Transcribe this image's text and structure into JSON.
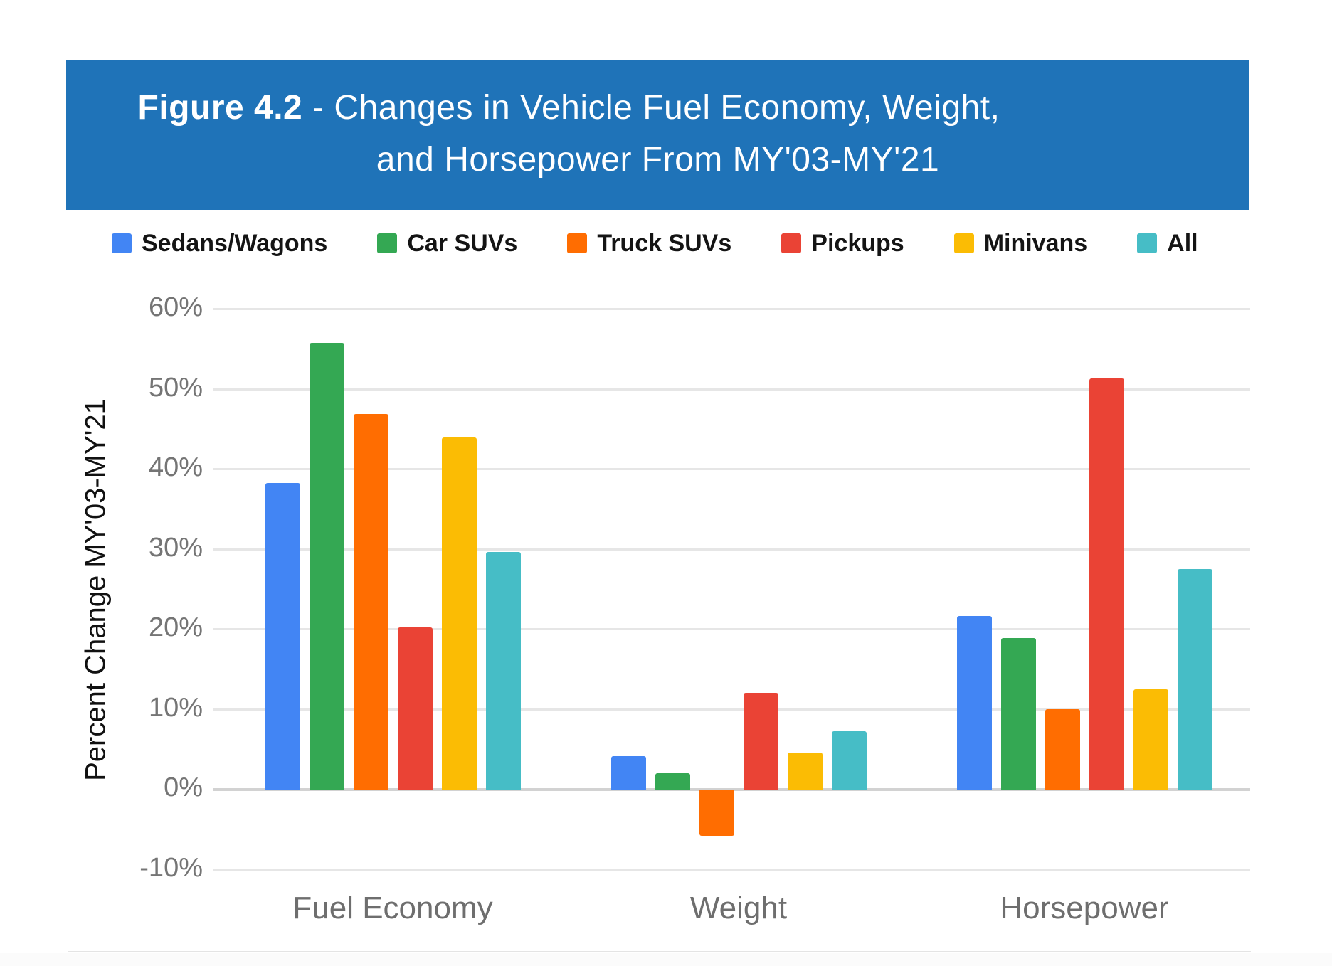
{
  "header": {
    "title_prefix": "Figure 4.2",
    "title_sep": " - ",
    "title_line1_rest": "Changes in Vehicle Fuel Economy, Weight,",
    "title_line2": "and Horsepower From MY'03-MY'21",
    "background_color": "#1F73B8",
    "text_color": "#FFFFFF"
  },
  "chart_data": {
    "type": "bar",
    "title": "Figure 4.2 - Changes in Vehicle Fuel Economy, Weight, and Horsepower From MY'03-MY'21",
    "categories": [
      "Fuel Economy",
      "Weight",
      "Horsepower"
    ],
    "series": [
      {
        "name": "Sedans/Wagons",
        "color": "#4285F4",
        "values": [
          38.3,
          4.2,
          21.7
        ]
      },
      {
        "name": "Car SUVs",
        "color": "#34A853",
        "values": [
          55.8,
          2.1,
          19.0
        ]
      },
      {
        "name": "Truck SUVs",
        "color": "#FF6D01",
        "values": [
          46.9,
          -5.7,
          10.1
        ]
      },
      {
        "name": "Pickups",
        "color": "#EA4335",
        "values": [
          20.3,
          12.1,
          51.4
        ]
      },
      {
        "name": "Minivans",
        "color": "#FBBC04",
        "values": [
          44.0,
          4.7,
          12.6
        ]
      },
      {
        "name": "All",
        "color": "#46BDC6",
        "values": [
          29.7,
          7.3,
          27.6
        ]
      }
    ],
    "xlabel": "",
    "ylabel": "Percent Change MY'03-MY'21",
    "ylim": [
      -10,
      60
    ],
    "yticks": [
      60,
      50,
      40,
      30,
      20,
      10,
      0,
      -10
    ],
    "ytick_labels": [
      "60%",
      "50%",
      "40%",
      "30%",
      "20%",
      "10%",
      "0%",
      "-10%"
    ],
    "grid": true,
    "legend_position": "top"
  }
}
